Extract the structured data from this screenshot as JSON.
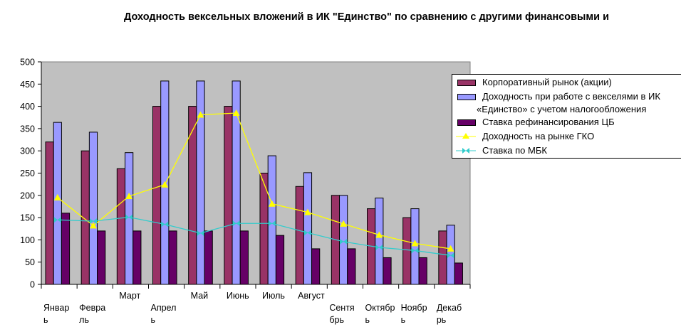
{
  "chart_data": {
    "type": "bar",
    "title": "Доходность вексельных вложений в ИК \"Единство\" по сравнению с другими финансовыми и",
    "categories": [
      "Январь",
      "Февраль",
      "Март",
      "Апрель",
      "Май",
      "Июнь",
      "Июль",
      "Август",
      "Сентябрь",
      "Октябрь",
      "Ноябрь",
      "Декабрь"
    ],
    "ylim": [
      0,
      500
    ],
    "yticks": [
      "0",
      "50",
      "100",
      "150",
      "200",
      "250",
      "300",
      "350",
      "400",
      "450",
      "500"
    ],
    "grid": false,
    "legend_position": "right",
    "plot_background": "#c0c0c0",
    "series": [
      {
        "name": "Корпоративный рынок (акции)",
        "kind": "bar",
        "color": "#993366",
        "values": [
          320,
          300,
          260,
          400,
          400,
          400,
          250,
          220,
          200,
          170,
          150,
          120
        ]
      },
      {
        "name": "Доходность при работе с векселями в ИК «Единство» с учетом налогообложения",
        "kind": "bar",
        "color": "#9999ff",
        "values": [
          364,
          342,
          296,
          457,
          457,
          457,
          289,
          251,
          200,
          194,
          170,
          133
        ]
      },
      {
        "name": "Ставка рефинансирования ЦБ",
        "kind": "bar",
        "color": "#660066",
        "values": [
          160,
          120,
          120,
          120,
          120,
          120,
          110,
          80,
          80,
          60,
          60,
          48
        ]
      },
      {
        "name": "Доходность на рынке ГКО",
        "kind": "line",
        "marker": "triangle",
        "color": "#ffff00",
        "values": [
          195,
          132,
          198,
          224,
          381,
          385,
          181,
          162,
          136,
          111,
          92,
          80
        ]
      },
      {
        "name": "Ставка по МБК",
        "kind": "line",
        "marker": "bowtie",
        "color": "#33cccc",
        "values": [
          145,
          142,
          151,
          135,
          115,
          137,
          137,
          116,
          96,
          83,
          76,
          65
        ]
      }
    ],
    "legend_lines": [
      [
        "Корпоративный рынок (акции)"
      ],
      [
        "Доходность при работе с векселями в ИК",
        "«Единство» с учетом налогообложения"
      ],
      [
        "Ставка рефинансирования ЦБ"
      ],
      [
        "Доходность на рынке ГКО"
      ],
      [
        "Ставка по МБК"
      ]
    ]
  }
}
